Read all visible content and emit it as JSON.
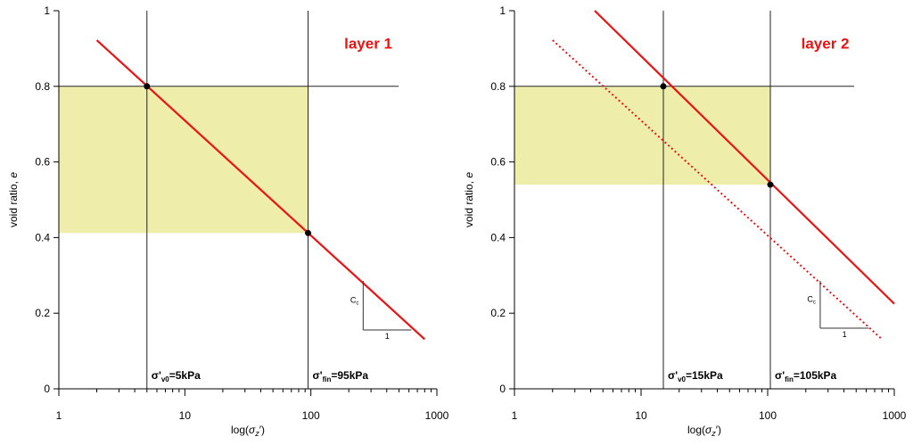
{
  "chart_data": [
    {
      "type": "line",
      "title": "layer 1",
      "xlabel": "log(σ_z′)",
      "ylabel": "void ratio, e",
      "x_scale": "log",
      "xlim": [
        1,
        1000
      ],
      "ylim": [
        0,
        1
      ],
      "x_ticks": [
        "1",
        "10",
        "100",
        "1000"
      ],
      "y_ticks": [
        "0",
        "0.2",
        "0.4",
        "0.6",
        "0.8",
        "1"
      ],
      "colors": {
        "line": "#ee1111",
        "band": "#eeeeaa",
        "axis": "#000000"
      },
      "series": [
        {
          "style": "solid",
          "x": [
            2,
            800
          ],
          "y": [
            0.922,
            0.131
          ]
        }
      ],
      "shaded_band": {
        "x": [
          1,
          95
        ],
        "y": [
          0.412,
          0.8
        ]
      },
      "reference_lines": {
        "horizontal": [
          0.8
        ],
        "vertical": [
          5,
          95
        ]
      },
      "points": [
        {
          "x": 5,
          "y": 0.8
        },
        {
          "x": 95,
          "y": 0.412
        }
      ],
      "annotations": [
        {
          "main": "σ'",
          "sub": "v0",
          "rest": "=5kPa",
          "x": 5
        },
        {
          "main": "σ'",
          "sub": "fin",
          "rest": "=95kPa",
          "x": 95
        }
      ],
      "slope_triangle": {
        "label": "C",
        "label_sub": "c",
        "run_label": "1"
      }
    },
    {
      "type": "line",
      "title": "layer 2",
      "xlabel": "log(σ_z′)",
      "ylabel": "void ratio, e",
      "x_scale": "log",
      "xlim": [
        1,
        1000
      ],
      "ylim": [
        0,
        1
      ],
      "x_ticks": [
        "1",
        "10",
        "100",
        "1000"
      ],
      "y_ticks": [
        "0",
        "0.2",
        "0.4",
        "0.6",
        "0.8",
        "1"
      ],
      "colors": {
        "line": "#ee1111",
        "band": "#eeeeaa",
        "axis": "#000000"
      },
      "series": [
        {
          "style": "solid",
          "x": [
            4.3,
            1000
          ],
          "y": [
            1.0,
            0.225
          ]
        },
        {
          "style": "dotted",
          "x": [
            2,
            800
          ],
          "y": [
            0.922,
            0.131
          ]
        }
      ],
      "shaded_band": {
        "x": [
          1,
          105
        ],
        "y": [
          0.54,
          0.8
        ]
      },
      "reference_lines": {
        "horizontal": [
          0.8
        ],
        "vertical": [
          15,
          105
        ]
      },
      "points": [
        {
          "x": 15,
          "y": 0.8
        },
        {
          "x": 105,
          "y": 0.54
        }
      ],
      "annotations": [
        {
          "main": "σ'",
          "sub": "v0",
          "rest": "=15kPa",
          "x": 15
        },
        {
          "main": "σ'",
          "sub": "fin",
          "rest": "=105kPa",
          "x": 105
        }
      ],
      "slope_triangle": {
        "label": "C",
        "label_sub": "c",
        "run_label": "1"
      }
    }
  ]
}
